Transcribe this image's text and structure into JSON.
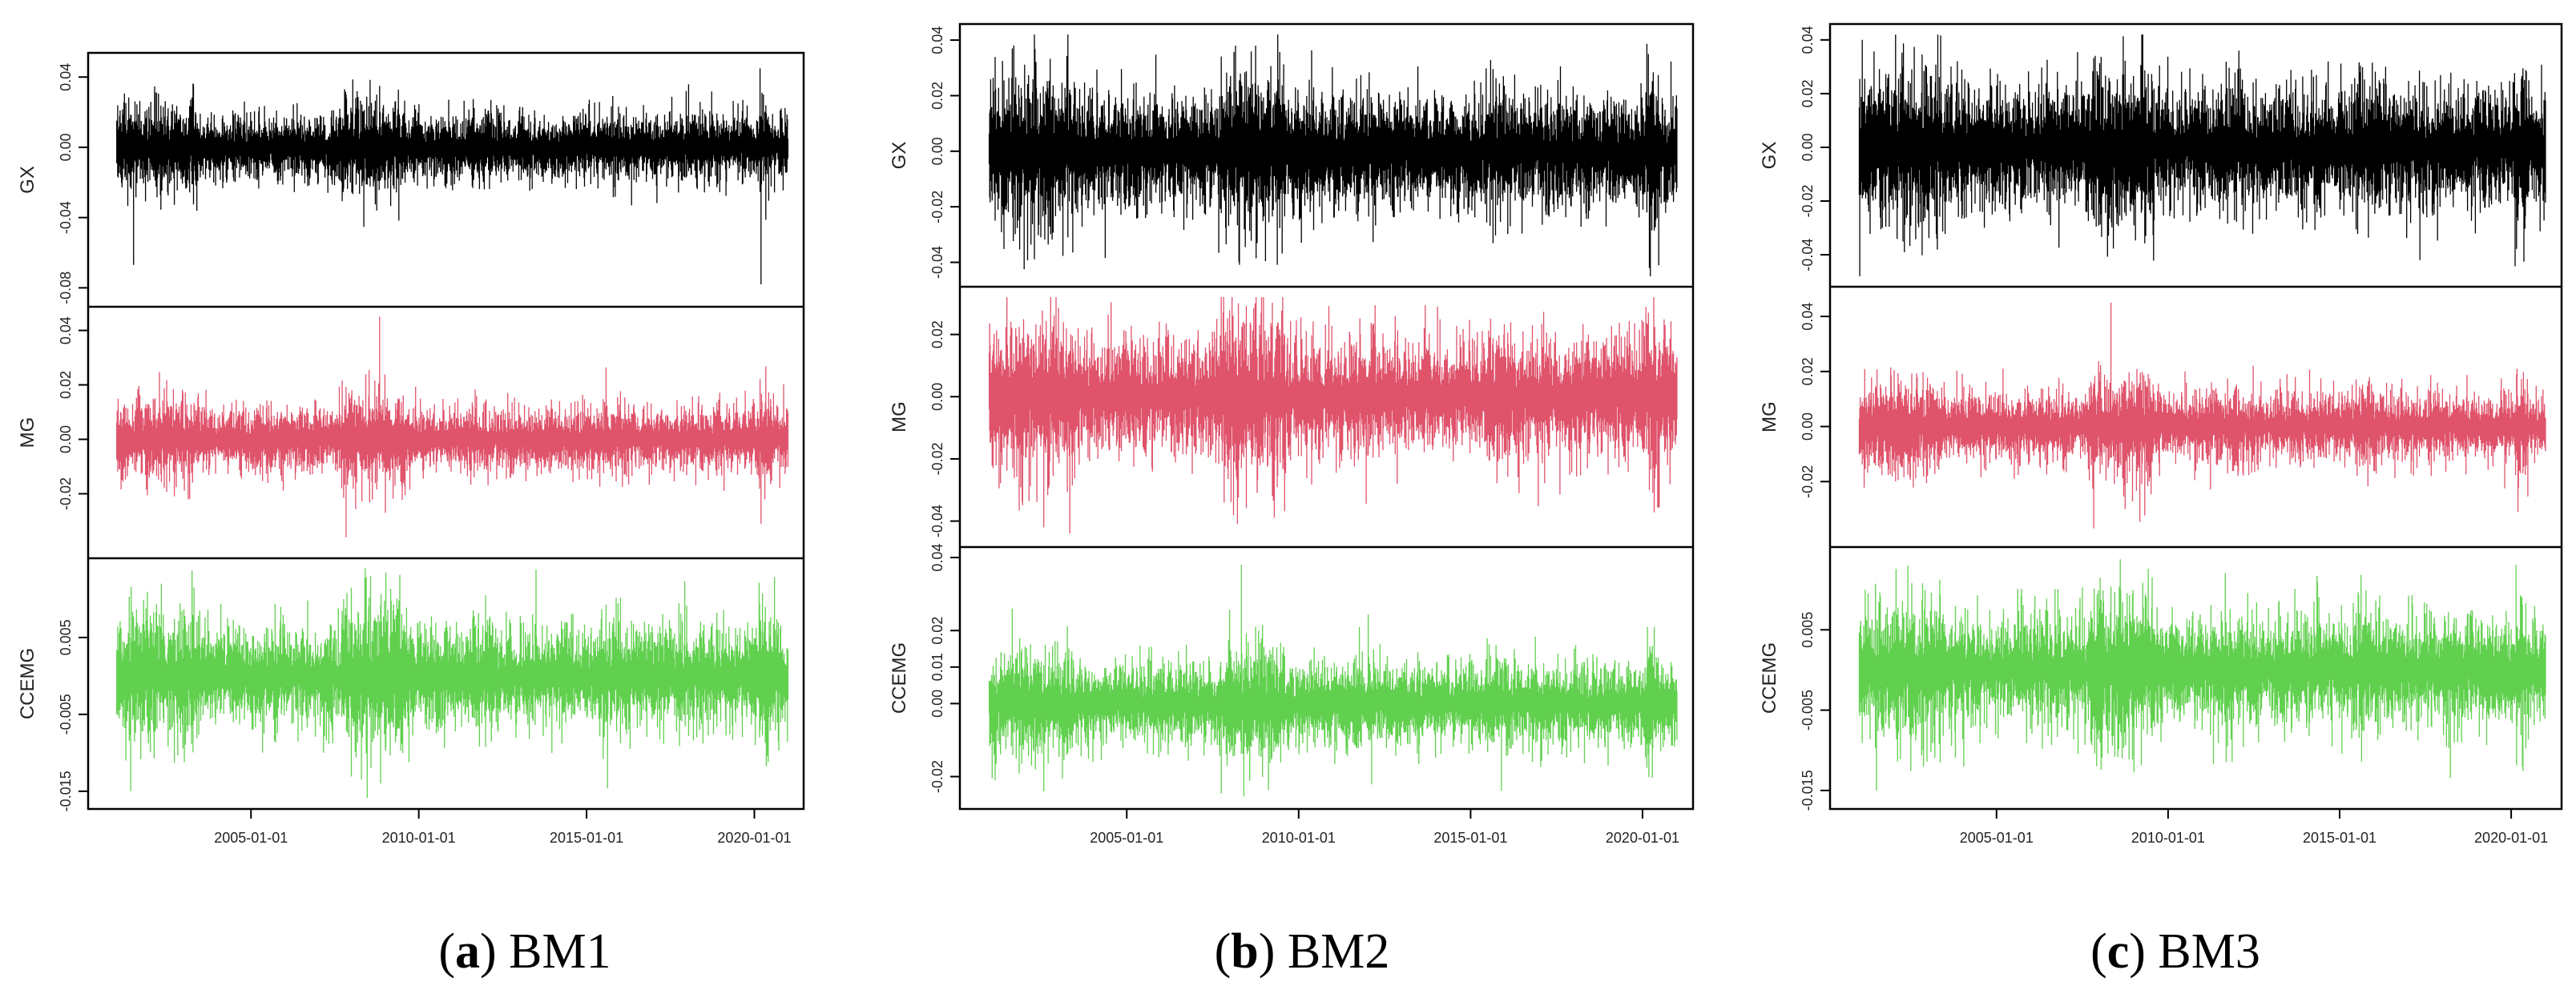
{
  "figure": {
    "captions": [
      {
        "label": "a",
        "text": "BM1"
      },
      {
        "label": "b",
        "text": "BM2"
      },
      {
        "label": "c",
        "text": "BM3"
      }
    ]
  },
  "colors": {
    "GX": "#000000",
    "MG": "#DF536B",
    "CCEMG": "#61D04F",
    "axis": "#000000",
    "text": "#222222"
  },
  "chart_data": [
    {
      "type": "line",
      "title": "BM1",
      "x_range": [
        "2001-01-01",
        "2021-01-01"
      ],
      "x_ticks": [
        "2005-01-01",
        "2010-01-01",
        "2015-01-01",
        "2020-01-01"
      ],
      "panels": [
        {
          "series": "GX",
          "ylabel": "GX",
          "ylim": [
            -0.085,
            0.048
          ],
          "yticks": [
            0.04,
            0.0,
            -0.04,
            -0.08
          ],
          "ytick_labels": [
            "0.04",
            "0.00",
            "-0.04",
            "-0.08"
          ],
          "base_amplitude": 0.011,
          "spikes": [
            [
              "2001-07-01",
              -0.067
            ],
            [
              "2008-03-01",
              0.032
            ],
            [
              "2008-11-01",
              0.035
            ],
            [
              "2008-10-01",
              -0.036
            ],
            [
              "2020-03-01",
              0.045
            ],
            [
              "2020-03-15",
              -0.078
            ]
          ]
        },
        {
          "series": "MG",
          "ylabel": "MG",
          "ylim": [
            -0.04,
            0.045
          ],
          "yticks": [
            0.04,
            0.02,
            0.0,
            -0.02
          ],
          "ytick_labels": [
            "0.04",
            "0.02",
            "0.00",
            "-0.02"
          ],
          "base_amplitude": 0.007,
          "spikes": [
            [
              "2008-01-01",
              0.018
            ],
            [
              "2007-11-01",
              -0.036
            ],
            [
              "2008-11-01",
              0.045
            ],
            [
              "2009-01-01",
              -0.027
            ],
            [
              "2020-03-01",
              0.02
            ],
            [
              "2020-03-15",
              -0.031
            ]
          ]
        },
        {
          "series": "CCEMG",
          "ylabel": "CCEMG",
          "ylim": [
            -0.016,
            0.014
          ],
          "yticks": [
            0.005,
            -0.005,
            -0.015
          ],
          "ytick_labels": [
            "0.005",
            "-0.005",
            "-0.015"
          ],
          "base_amplitude": 0.0038,
          "spikes": [
            [
              "2001-06-01",
              -0.015
            ],
            [
              "2002-05-01",
              0.012
            ],
            [
              "2008-10-01",
              0.007
            ],
            [
              "2008-08-01",
              -0.012
            ],
            [
              "2020-03-01",
              -0.007
            ]
          ]
        }
      ]
    },
    {
      "type": "line",
      "title": "BM2",
      "x_range": [
        "2001-01-01",
        "2021-01-01"
      ],
      "x_ticks": [
        "2005-01-01",
        "2010-01-01",
        "2015-01-01",
        "2020-01-01"
      ],
      "panels": [
        {
          "series": "GX",
          "ylabel": "GX",
          "ylim": [
            -0.045,
            0.042
          ],
          "yticks": [
            0.04,
            0.02,
            0.0,
            -0.02,
            -0.04
          ],
          "ytick_labels": [
            "0.04",
            "0.02",
            "0.00",
            "-0.02",
            "-0.04"
          ],
          "base_amplitude": 0.012,
          "spikes": [
            [
              "2001-09-01",
              0.037
            ],
            [
              "2001-03-01",
              -0.025
            ],
            [
              "2008-03-01",
              0.038
            ],
            [
              "2008-10-01",
              0.038
            ],
            [
              "2008-10-15",
              -0.033
            ],
            [
              "2020-03-01",
              0.035
            ],
            [
              "2020-03-15",
              -0.042
            ]
          ]
        },
        {
          "series": "MG",
          "ylabel": "MG",
          "ylim": [
            -0.045,
            0.032
          ],
          "yticks": [
            0.02,
            0.0,
            -0.02,
            -0.04
          ],
          "ytick_labels": [
            "0.02",
            "0.00",
            "-0.02",
            "-0.04"
          ],
          "base_amplitude": 0.011,
          "spikes": [
            [
              "2002-08-01",
              -0.042
            ],
            [
              "2008-04-01",
              0.03
            ],
            [
              "2007-11-01",
              -0.034
            ],
            [
              "2016-06-01",
              -0.031
            ],
            [
              "2020-03-01",
              0.027
            ],
            [
              "2020-03-15",
              -0.03
            ]
          ]
        },
        {
          "series": "CCEMG",
          "ylabel": "CCEMG",
          "ylim": [
            -0.026,
            0.04
          ],
          "yticks": [
            0.04,
            0.02,
            0.01,
            0.0,
            -0.02
          ],
          "ytick_labels": [
            "0.04",
            "0.02",
            "0.01",
            "0.00",
            "-0.02"
          ],
          "base_amplitude": 0.0065,
          "spikes": [
            [
              "2001-03-01",
              -0.021
            ],
            [
              "2001-09-01",
              0.026
            ],
            [
              "2002-08-01",
              -0.024
            ],
            [
              "2008-05-01",
              0.038
            ],
            [
              "2008-11-01",
              0.02
            ],
            [
              "2020-03-01",
              -0.014
            ]
          ]
        }
      ]
    },
    {
      "type": "line",
      "title": "BM3",
      "x_range": [
        "2001-01-01",
        "2021-01-01"
      ],
      "x_ticks": [
        "2005-01-01",
        "2010-01-01",
        "2015-01-01",
        "2020-01-01"
      ],
      "panels": [
        {
          "series": "GX",
          "ylabel": "GX",
          "ylim": [
            -0.048,
            0.042
          ],
          "yticks": [
            0.04,
            0.02,
            0.0,
            -0.02,
            -0.04
          ],
          "ytick_labels": [
            "0.04",
            "0.02",
            "0.00",
            "-0.02",
            "-0.04"
          ],
          "base_amplitude": 0.013,
          "spikes": [
            [
              "2001-02-01",
              0.04
            ],
            [
              "2001-09-01",
              -0.03
            ],
            [
              "2016-05-01",
              0.03
            ],
            [
              "2017-05-01",
              -0.042
            ],
            [
              "2020-03-01",
              -0.026
            ]
          ]
        },
        {
          "series": "MG",
          "ylabel": "MG",
          "ylim": [
            -0.04,
            0.047
          ],
          "yticks": [
            0.04,
            0.02,
            0.0,
            -0.02
          ],
          "ytick_labels": [
            "0.04",
            "0.02",
            "0.00",
            "-0.02"
          ],
          "base_amplitude": 0.0075,
          "spikes": [
            [
              "2008-05-01",
              0.045
            ],
            [
              "2007-11-01",
              -0.037
            ],
            [
              "2008-10-01",
              -0.03
            ],
            [
              "2020-03-01",
              0.021
            ],
            [
              "2020-03-15",
              -0.031
            ]
          ]
        },
        {
          "series": "CCEMG",
          "ylabel": "CCEMG",
          "ylim": [
            -0.016,
            0.014
          ],
          "yticks": [
            0.005,
            -0.005,
            -0.015
          ],
          "ytick_labels": [
            "0.005",
            "-0.005",
            "-0.015"
          ],
          "base_amplitude": 0.004,
          "spikes": [
            [
              "2001-03-01",
              0.01
            ],
            [
              "2001-07-01",
              -0.015
            ],
            [
              "2002-06-01",
              0.013
            ],
            [
              "2008-09-01",
              -0.011
            ],
            [
              "2020-03-01",
              -0.007
            ]
          ]
        }
      ]
    }
  ]
}
